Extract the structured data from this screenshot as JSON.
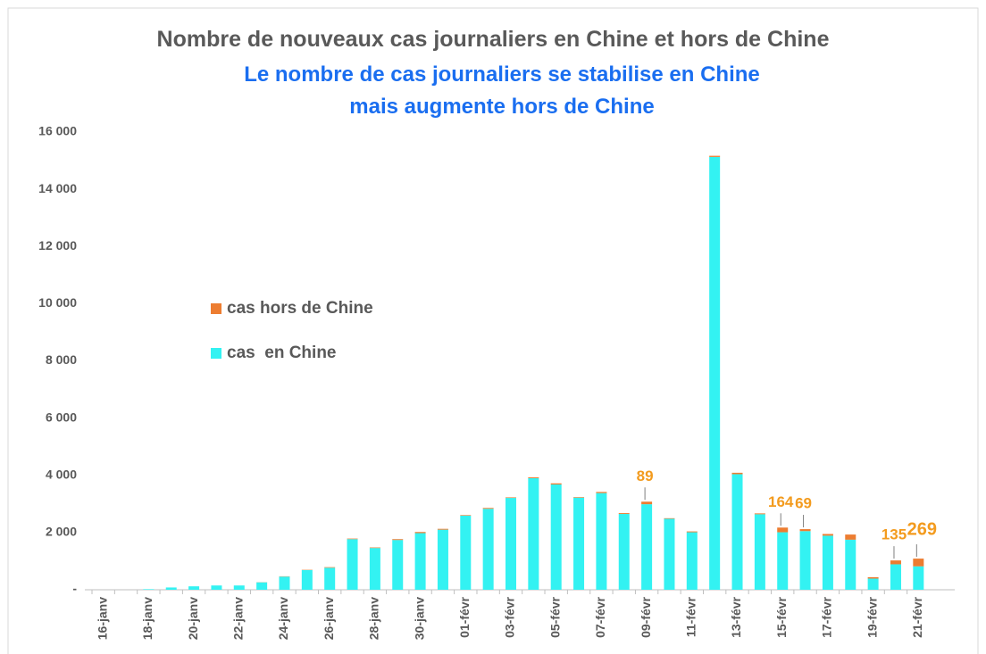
{
  "chart_data": {
    "type": "stacked_bar",
    "title": "Nombre de nouveaux cas journaliers en Chine et hors de Chine",
    "subtitle": "Le nombre de cas journaliers se stabilise en Chine mais augmente hors de Chine",
    "categories": [
      "16-janv",
      null,
      "18-janv",
      null,
      "20-janv",
      null,
      "22-janv",
      null,
      "24-janv",
      null,
      "26-janv",
      null,
      "28-janv",
      null,
      "30-janv",
      null,
      "01-févr",
      null,
      "03-févr",
      null,
      "05-févr",
      null,
      "07-févr",
      null,
      "09-févr",
      null,
      "11-févr",
      null,
      "13-févr",
      null,
      "15-févr",
      null,
      "17-févr",
      null,
      "19-févr",
      null,
      "21-févr"
    ],
    "series": [
      {
        "name": "cas  en Chine",
        "color": "#33f2f2",
        "values": [
          0,
          0,
          20,
          80,
          120,
          150,
          150,
          260,
          460,
          690,
          770,
          1770,
          1460,
          1740,
          1980,
          2100,
          2590,
          2830,
          3210,
          3900,
          3680,
          3220,
          3380,
          2650,
          2990,
          2480,
          2010,
          15130,
          4040,
          2640,
          2010,
          2050,
          1890,
          1750,
          390,
          890,
          820
        ]
      },
      {
        "name": "cas hors de Chine",
        "color": "#ed7d31",
        "values": [
          0,
          0,
          0,
          0,
          0,
          0,
          0,
          5,
          10,
          10,
          20,
          20,
          20,
          30,
          40,
          30,
          20,
          30,
          20,
          30,
          40,
          20,
          40,
          30,
          89,
          20,
          30,
          40,
          50,
          30,
          164,
          69,
          60,
          180,
          50,
          135,
          269
        ],
        "value_labels": [
          null,
          null,
          null,
          null,
          null,
          null,
          null,
          null,
          null,
          null,
          null,
          null,
          null,
          null,
          null,
          null,
          null,
          null,
          null,
          null,
          null,
          null,
          null,
          null,
          "89",
          null,
          null,
          null,
          null,
          null,
          "164",
          "69",
          null,
          null,
          null,
          "135",
          "269"
        ]
      }
    ],
    "ylim": [
      0,
      16000
    ],
    "yticks": [
      {
        "value": 0,
        "label": "-"
      },
      {
        "value": 2000,
        "label": "2 000"
      },
      {
        "value": 4000,
        "label": "4 000"
      },
      {
        "value": 6000,
        "label": "6 000"
      },
      {
        "value": 8000,
        "label": "8 000"
      },
      {
        "value": 10000,
        "label": "10 000"
      },
      {
        "value": 12000,
        "label": "12 000"
      },
      {
        "value": 14000,
        "label": "14 000"
      },
      {
        "value": 16000,
        "label": "16 000"
      }
    ],
    "grid": false
  }
}
